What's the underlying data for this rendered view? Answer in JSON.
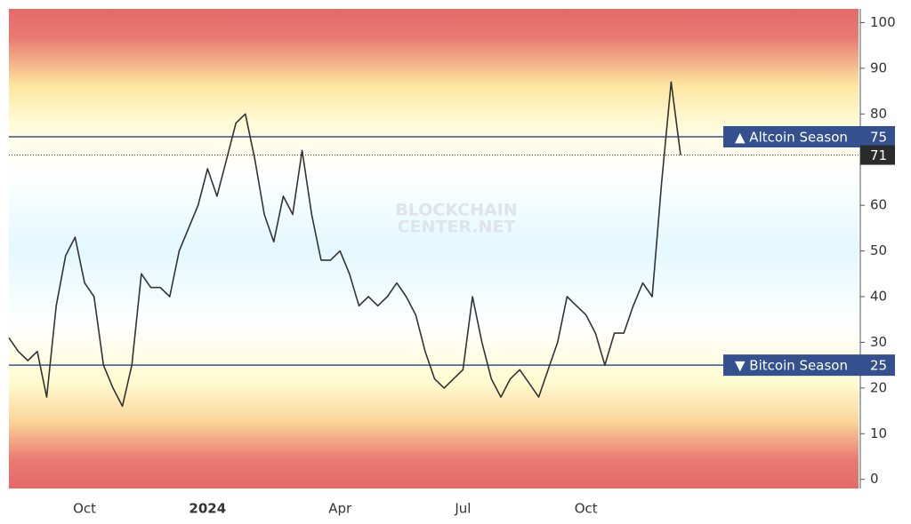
{
  "chart_data": {
    "type": "line",
    "categories": [
      null,
      null,
      null,
      null,
      null,
      null,
      null,
      null,
      "Oct",
      null,
      null,
      null,
      null,
      null,
      null,
      null,
      null,
      null,
      null,
      null,
      null,
      "2024",
      null,
      null,
      null,
      null,
      null,
      null,
      null,
      null,
      null,
      null,
      null,
      null,
      null,
      "Apr",
      null,
      null,
      null,
      null,
      null,
      null,
      null,
      null,
      null,
      null,
      null,
      null,
      "Jul",
      null,
      null,
      null,
      null,
      null,
      null,
      null,
      null,
      null,
      null,
      null,
      null,
      "Oct",
      null,
      null,
      null,
      null,
      null,
      null,
      null,
      null,
      null,
      null
    ],
    "values": [
      31,
      28,
      26,
      28,
      18,
      38,
      49,
      53,
      43,
      40,
      25,
      20,
      16,
      25,
      45,
      42,
      42,
      40,
      50,
      55,
      60,
      68,
      62,
      70,
      78,
      80,
      70,
      58,
      52,
      62,
      58,
      72,
      58,
      48,
      48,
      50,
      45,
      38,
      40,
      38,
      40,
      43,
      40,
      36,
      28,
      22,
      20,
      22,
      24,
      40,
      30,
      22,
      18,
      22,
      24,
      21,
      18,
      24,
      30,
      40,
      38,
      36,
      32,
      25,
      32,
      32,
      38,
      43,
      40,
      65,
      87,
      71
    ],
    "color": "#333333",
    "ylim": [
      -2,
      103
    ],
    "yticks": [
      0,
      10,
      20,
      30,
      40,
      50,
      60,
      70,
      80,
      90,
      100
    ],
    "reference_lines": [
      {
        "value": 75,
        "label": "▲ Altcoin Season",
        "color": "#34508f"
      },
      {
        "value": 25,
        "label": "▼ Bitcoin Season",
        "color": "#34508f"
      }
    ],
    "watermark": [
      "BLOCKCHAIN",
      "CENTER.NET"
    ]
  }
}
